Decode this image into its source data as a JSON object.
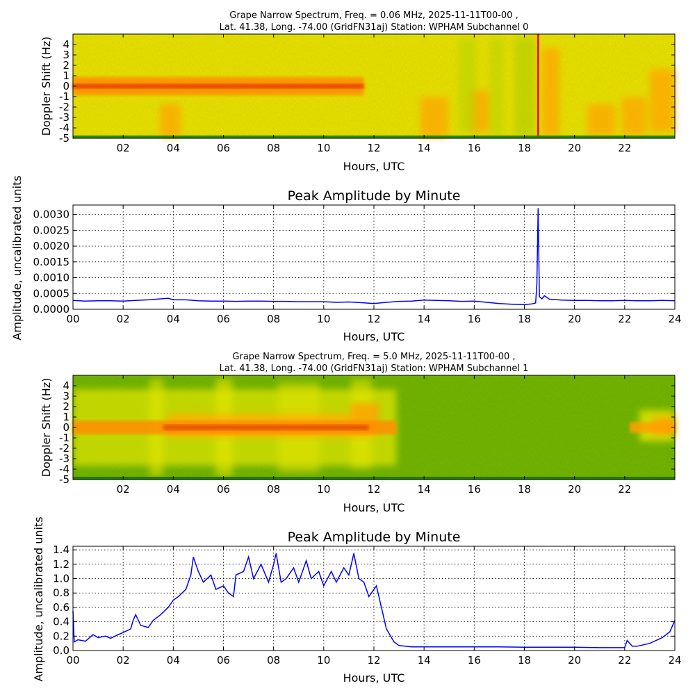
{
  "chart_data": [
    {
      "type": "heatmap",
      "title_lines": [
        "Grape Narrow Spectrum, Freq. = 0.06 MHz, 2025-11-11T00-00 ,",
        "Lat.  41.38, Long. -74.00 (GridFN31aj) Station: WPHAM Subchannel 0"
      ],
      "xlabel": "Hours, UTC",
      "ylabel": "Doppler Shift (Hz)",
      "xlim": [
        0,
        24
      ],
      "ylim": [
        -5,
        5
      ],
      "x_ticks": [
        2,
        4,
        6,
        8,
        10,
        12,
        14,
        16,
        18,
        20,
        22
      ],
      "x_tick_labels": [
        "02",
        "04",
        "06",
        "08",
        "10",
        "12",
        "14",
        "16",
        "18",
        "20",
        "22"
      ],
      "y_ticks": [
        4,
        3,
        2,
        1,
        0,
        -1,
        -2,
        -3,
        -4,
        -5
      ],
      "y_tick_labels": [
        "4",
        "3",
        "2",
        "1",
        "0",
        "-1",
        "-2",
        "-3",
        "-4",
        "-5"
      ],
      "colormap": [
        "#2f8a00",
        "#8cbf00",
        "#e6e600",
        "#ffb000",
        "#e53000"
      ],
      "features": {
        "carrier_center_hz": 0,
        "carrier_end_hours": 11.6,
        "spike_hours": 18.55
      },
      "grid": false
    },
    {
      "type": "line",
      "title": "Peak Amplitude by Minute",
      "xlabel": "Hours, UTC",
      "ylabel": "Amplitude, uncalibrated units",
      "xlim": [
        0,
        24
      ],
      "ylim": [
        0,
        0.0033
      ],
      "x_ticks": [
        0,
        2,
        4,
        6,
        8,
        10,
        12,
        14,
        16,
        18,
        20,
        22,
        24
      ],
      "x_tick_labels": [
        "00",
        "02",
        "04",
        "06",
        "08",
        "10",
        "12",
        "14",
        "16",
        "18",
        "20",
        "22",
        "24"
      ],
      "y_ticks": [
        0,
        0.0005,
        0.001,
        0.0015,
        0.002,
        0.0025,
        0.003
      ],
      "y_tick_labels": [
        "0.0000",
        "0.0005",
        "0.0010",
        "0.0015",
        "0.0020",
        "0.0025",
        "0.0030"
      ],
      "grid": true,
      "color": "#0000ff",
      "x": [
        0,
        0.5,
        1,
        1.5,
        2,
        2.5,
        3,
        3.5,
        3.8,
        4,
        4.5,
        5,
        5.5,
        6,
        6.5,
        7,
        7.5,
        8,
        8.5,
        9,
        9.5,
        10,
        10.5,
        11,
        11.5,
        12,
        12.5,
        13,
        13.5,
        14,
        14.5,
        15,
        15.5,
        16,
        16.5,
        17,
        17.5,
        18,
        18.3,
        18.45,
        18.5,
        18.55,
        18.6,
        18.7,
        18.8,
        19,
        19.5,
        20,
        20.5,
        21,
        21.5,
        22,
        22.5,
        23,
        23.5,
        24
      ],
      "values": [
        0.00028,
        0.00026,
        0.00027,
        0.00027,
        0.00026,
        0.00028,
        0.0003,
        0.00033,
        0.00035,
        0.0003,
        0.0003,
        0.00027,
        0.00026,
        0.00026,
        0.00025,
        0.00026,
        0.00026,
        0.00025,
        0.00025,
        0.00024,
        0.00024,
        0.00024,
        0.00022,
        0.00023,
        0.00021,
        0.00018,
        0.00022,
        0.00025,
        0.00026,
        0.00029,
        0.00028,
        0.00027,
        0.00025,
        0.00026,
        0.00022,
        0.00018,
        0.00016,
        0.00015,
        0.00017,
        0.0002,
        0.0008,
        0.0032,
        0.0004,
        0.00033,
        0.00043,
        0.00032,
        0.00029,
        0.00028,
        0.00028,
        0.00027,
        0.00027,
        0.00028,
        0.00027,
        0.00027,
        0.00028,
        0.00027
      ]
    },
    {
      "type": "heatmap",
      "title_lines": [
        "Grape Narrow Spectrum, Freq. = 5.0 MHz, 2025-11-11T00-00 ,",
        "Lat.  41.38, Long. -74.00 (GridFN31aj) Station: WPHAM Subchannel 1"
      ],
      "xlabel": "Hours, UTC",
      "ylabel": "Doppler Shift (Hz)",
      "xlim": [
        0,
        24
      ],
      "ylim": [
        -5,
        5
      ],
      "x_ticks": [
        2,
        4,
        6,
        8,
        10,
        12,
        14,
        16,
        18,
        20,
        22
      ],
      "x_tick_labels": [
        "02",
        "04",
        "06",
        "08",
        "10",
        "12",
        "14",
        "16",
        "18",
        "20",
        "22"
      ],
      "y_ticks": [
        4,
        3,
        2,
        1,
        0,
        -1,
        -2,
        -3,
        -4,
        -5
      ],
      "y_tick_labels": [
        "4",
        "3",
        "2",
        "1",
        "0",
        "-1",
        "-2",
        "-3",
        "-4",
        "-5"
      ],
      "colormap": [
        "#2f8a00",
        "#8cbf00",
        "#e6e600",
        "#ffb000",
        "#e53000"
      ],
      "features": {
        "carrier_center_hz": 0,
        "carrier_start_hours": 0,
        "carrier_end_hours": 12.9,
        "carrier_resume_hours": 22.2
      },
      "grid": false
    },
    {
      "type": "line",
      "title": "Peak Amplitude by Minute",
      "xlabel": "Hours, UTC",
      "ylabel": "Amplitude, uncalibrated units",
      "xlim": [
        0,
        24
      ],
      "ylim": [
        0,
        1.45
      ],
      "x_ticks": [
        0,
        2,
        4,
        6,
        8,
        10,
        12,
        14,
        16,
        18,
        20,
        22,
        24
      ],
      "x_tick_labels": [
        "00",
        "02",
        "04",
        "06",
        "08",
        "10",
        "12",
        "14",
        "16",
        "18",
        "20",
        "22",
        "24"
      ],
      "y_ticks": [
        0,
        0.2,
        0.4,
        0.6,
        0.8,
        1.0,
        1.2,
        1.4
      ],
      "y_tick_labels": [
        "0.0",
        "0.2",
        "0.4",
        "0.6",
        "0.8",
        "1.0",
        "1.2",
        "1.4"
      ],
      "grid": true,
      "color": "#0000ff",
      "x": [
        0,
        0.05,
        0.2,
        0.5,
        0.8,
        1,
        1.3,
        1.5,
        1.8,
        2,
        2.3,
        2.4,
        2.5,
        2.7,
        3,
        3.2,
        3.5,
        3.8,
        4,
        4.2,
        4.5,
        4.7,
        4.8,
        5,
        5.2,
        5.5,
        5.7,
        6,
        6.2,
        6.4,
        6.5,
        6.8,
        7,
        7.2,
        7.5,
        7.8,
        8,
        8.1,
        8.3,
        8.5,
        8.8,
        9,
        9.3,
        9.5,
        9.8,
        10,
        10.3,
        10.5,
        10.8,
        11,
        11.2,
        11.4,
        11.6,
        11.8,
        12,
        12.1,
        12.3,
        12.5,
        12.8,
        13,
        13.5,
        14,
        15,
        16,
        17,
        18,
        19,
        20,
        21,
        22,
        22.1,
        22.3,
        22.5,
        23,
        23.5,
        23.8,
        24
      ],
      "values": [
        0.55,
        0.12,
        0.15,
        0.13,
        0.22,
        0.18,
        0.2,
        0.17,
        0.22,
        0.25,
        0.3,
        0.42,
        0.5,
        0.35,
        0.32,
        0.42,
        0.5,
        0.6,
        0.7,
        0.75,
        0.85,
        1.05,
        1.3,
        1.1,
        0.95,
        1.05,
        0.85,
        0.9,
        0.8,
        0.75,
        1.05,
        1.1,
        1.3,
        1.0,
        1.2,
        0.95,
        1.2,
        1.35,
        0.95,
        1.0,
        1.15,
        0.95,
        1.25,
        1.0,
        1.1,
        0.9,
        1.1,
        0.95,
        1.15,
        1.05,
        1.35,
        1.0,
        0.95,
        0.75,
        0.85,
        0.9,
        0.6,
        0.3,
        0.12,
        0.07,
        0.05,
        0.05,
        0.05,
        0.05,
        0.05,
        0.045,
        0.045,
        0.045,
        0.04,
        0.04,
        0.14,
        0.06,
        0.06,
        0.1,
        0.18,
        0.26,
        0.42
      ]
    }
  ]
}
